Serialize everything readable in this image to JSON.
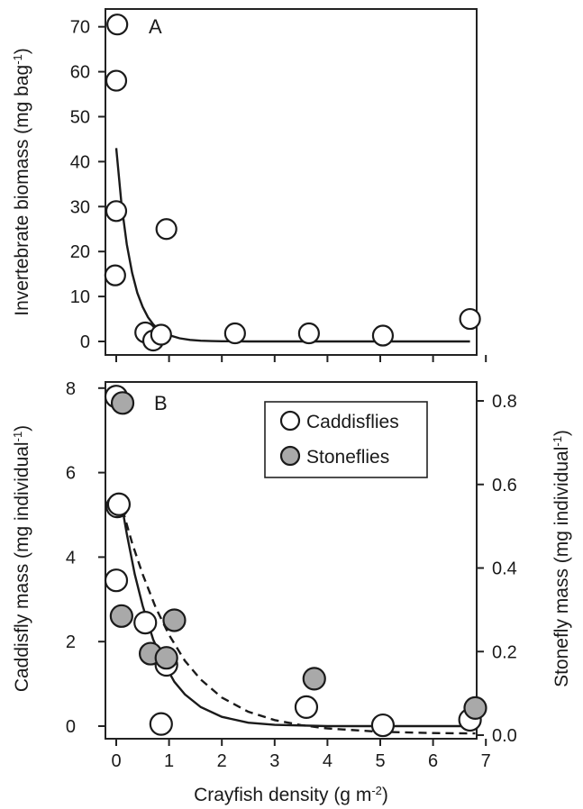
{
  "chart_data": [
    {
      "type": "scatter",
      "panel_label": "A",
      "ylabel_main": "Invertebrate biomass (mg bag",
      "ylabel_sup": "-1",
      "ylabel_end": ")",
      "xlim": [
        0,
        7
      ],
      "ylim": [
        0,
        72
      ],
      "y_ticks": [
        0,
        10,
        20,
        30,
        40,
        50,
        60,
        70
      ],
      "x_ticks": [
        0,
        1,
        2,
        3,
        4,
        5,
        6,
        7
      ],
      "series": [
        {
          "marker": "open-circle",
          "points": [
            [
              0.02,
              70.5
            ],
            [
              0.0,
              58.0
            ],
            [
              0.0,
              29.0
            ],
            [
              -0.02,
              14.7
            ],
            [
              0.55,
              2.0
            ],
            [
              0.7,
              0.2
            ],
            [
              0.85,
              1.5
            ],
            [
              0.95,
              25.0
            ],
            [
              2.25,
              1.8
            ],
            [
              3.65,
              1.8
            ],
            [
              5.05,
              1.3
            ],
            [
              6.7,
              5.0
            ]
          ]
        }
      ],
      "fit": {
        "style": "solid",
        "model": "exponential decay",
        "points": [
          [
            0.0,
            43.0
          ],
          [
            0.1,
            30.4
          ],
          [
            0.2,
            21.6
          ],
          [
            0.3,
            15.3
          ],
          [
            0.4,
            10.8
          ],
          [
            0.5,
            7.7
          ],
          [
            0.6,
            5.4
          ],
          [
            0.7,
            3.8
          ],
          [
            0.8,
            2.7
          ],
          [
            0.9,
            1.9
          ],
          [
            1.0,
            1.4
          ],
          [
            1.2,
            0.7
          ],
          [
            1.4,
            0.35
          ],
          [
            1.6,
            0.17
          ],
          [
            1.8,
            0.09
          ],
          [
            2.0,
            0.04
          ],
          [
            2.5,
            0.0
          ],
          [
            3.0,
            0.0
          ],
          [
            4.0,
            0.0
          ],
          [
            5.0,
            0.0
          ],
          [
            6.0,
            0.0
          ],
          [
            6.7,
            0.0
          ]
        ]
      }
    },
    {
      "type": "scatter",
      "panel_label": "B",
      "xlabel_main": "Crayfish density (g m",
      "xlabel_sup": "-2",
      "xlabel_end": ")",
      "ylabel_left_main": "Caddisfly mass (mg individual",
      "ylabel_left_sup": "-1",
      "ylabel_left_end": ")",
      "ylabel_right_main": "Stonefly mass (mg individual",
      "ylabel_right_sup": "-1",
      "ylabel_right_end": ")",
      "xlim": [
        0,
        7
      ],
      "ylim_left": [
        0,
        8
      ],
      "ylim_right": [
        0,
        0.8
      ],
      "x_ticks": [
        0,
        1,
        2,
        3,
        4,
        5,
        6,
        7
      ],
      "y_ticks_left": [
        0,
        2,
        4,
        6,
        8
      ],
      "y_ticks_right": [
        "0.0",
        "0.2",
        "0.4",
        "0.6",
        "0.8"
      ],
      "legend": {
        "position": "top-right",
        "entries": [
          "Caddisflies",
          "Stoneflies"
        ]
      },
      "series": [
        {
          "name": "Caddisflies",
          "marker": "open-circle",
          "axis": "left",
          "points": [
            [
              0.0,
              7.8
            ],
            [
              0.02,
              5.2
            ],
            [
              0.05,
              5.25
            ],
            [
              0.0,
              3.45
            ],
            [
              0.55,
              2.45
            ],
            [
              0.95,
              1.45
            ],
            [
              0.85,
              0.05
            ],
            [
              3.6,
              0.45
            ],
            [
              5.05,
              0.02
            ],
            [
              6.7,
              0.15
            ]
          ]
        },
        {
          "name": "Stoneflies",
          "marker": "grey-circle",
          "axis": "right",
          "points": [
            [
              0.12,
              0.795
            ],
            [
              0.1,
              0.285
            ],
            [
              1.1,
              0.275
            ],
            [
              0.65,
              0.195
            ],
            [
              0.95,
              0.185
            ],
            [
              3.75,
              0.135
            ],
            [
              6.8,
              0.065
            ]
          ]
        }
      ],
      "fits": [
        {
          "series": "Caddisflies",
          "style": "solid",
          "axis": "left",
          "points": [
            [
              0.08,
              5.4
            ],
            [
              0.2,
              4.55
            ],
            [
              0.35,
              3.6
            ],
            [
              0.5,
              2.85
            ],
            [
              0.7,
              2.05
            ],
            [
              0.9,
              1.5
            ],
            [
              1.1,
              1.05
            ],
            [
              1.3,
              0.75
            ],
            [
              1.6,
              0.45
            ],
            [
              2.0,
              0.22
            ],
            [
              2.5,
              0.08
            ],
            [
              3.0,
              0.03
            ],
            [
              4.0,
              0.0
            ],
            [
              5.0,
              0.0
            ],
            [
              6.0,
              0.0
            ],
            [
              6.7,
              0.0
            ]
          ]
        },
        {
          "series": "Stoneflies",
          "style": "dashed",
          "axis": "right",
          "points": [
            [
              0.12,
              0.54
            ],
            [
              0.3,
              0.46
            ],
            [
              0.5,
              0.385
            ],
            [
              0.75,
              0.305
            ],
            [
              1.0,
              0.24
            ],
            [
              1.3,
              0.178
            ],
            [
              1.6,
              0.133
            ],
            [
              2.0,
              0.09
            ],
            [
              2.5,
              0.056
            ],
            [
              3.0,
              0.036
            ],
            [
              3.5,
              0.024
            ],
            [
              4.0,
              0.016
            ],
            [
              5.0,
              0.008
            ],
            [
              6.0,
              0.005
            ],
            [
              6.8,
              0.004
            ]
          ]
        }
      ]
    }
  ]
}
